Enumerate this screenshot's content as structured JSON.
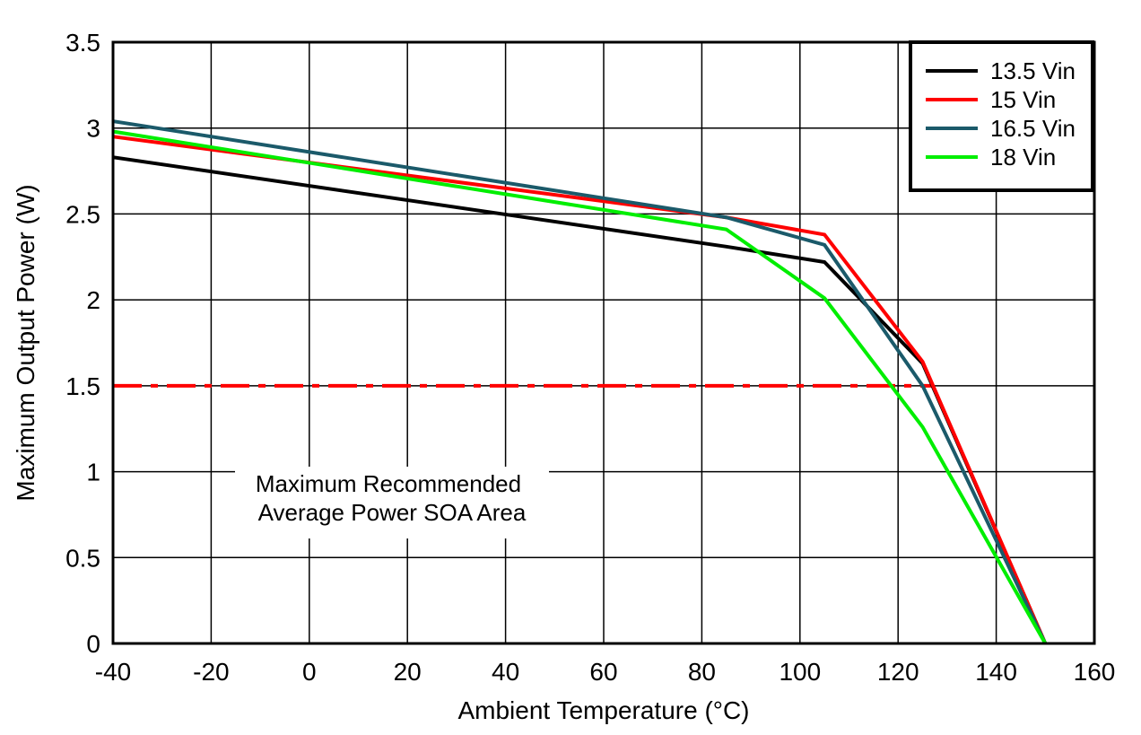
{
  "chart_data": {
    "type": "line",
    "title": "",
    "xlabel": "Ambient Temperature (°C)",
    "xlabel_parts": {
      "pre": "Ambient Temperature (",
      "sup": "o",
      "post": "C)"
    },
    "ylabel": "Maximum Output Power (W)",
    "xlim": [
      -40,
      160
    ],
    "ylim": [
      0,
      3.5
    ],
    "xticks": [
      -40,
      -20,
      0,
      20,
      40,
      60,
      80,
      100,
      120,
      140,
      160
    ],
    "yticks": [
      0,
      0.5,
      1,
      1.5,
      2,
      2.5,
      3,
      3.5
    ],
    "ytick_labels": [
      "0",
      "0.5",
      "1",
      "1.5",
      "2",
      "2.5",
      "3",
      "3.5"
    ],
    "grid": true,
    "legend_position": "top-right",
    "series": [
      {
        "name": "13.5 Vin",
        "color": "#000000",
        "x": [
          -40,
          85,
          105,
          125,
          150
        ],
        "y": [
          2.83,
          2.31,
          2.22,
          1.63,
          0
        ]
      },
      {
        "name": "15 Vin",
        "color": "#ff0000",
        "x": [
          -40,
          85,
          105,
          125,
          150
        ],
        "y": [
          2.95,
          2.48,
          2.38,
          1.64,
          0
        ]
      },
      {
        "name": "16.5 Vin",
        "color": "#1b5a6a",
        "x": [
          -40,
          85,
          105,
          125,
          150
        ],
        "y": [
          3.04,
          2.48,
          2.32,
          1.5,
          0
        ]
      },
      {
        "name": "18 Vin",
        "color": "#00ee00",
        "x": [
          -40,
          85,
          105,
          125,
          150
        ],
        "y": [
          2.98,
          2.41,
          2.01,
          1.26,
          0
        ]
      }
    ],
    "reference_line": {
      "y": 1.5,
      "color": "#ff0000",
      "style": "dash-dot",
      "x": [
        -40,
        127
      ]
    },
    "annotation": {
      "lines": [
        "Maximum Recommended",
        "Average Power SOA Area"
      ]
    }
  }
}
